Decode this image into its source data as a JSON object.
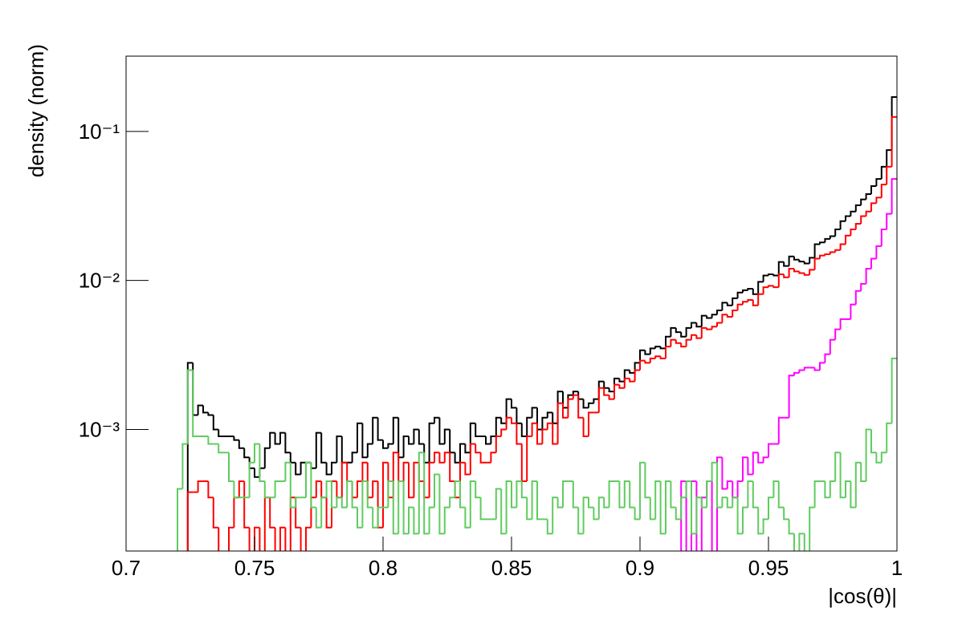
{
  "chart_data": {
    "type": "histogram",
    "x_label": "|cos(θ)|",
    "y_label": "density (norm)",
    "ylog": true,
    "xlim": [
      0.7,
      1
    ],
    "ylim": [
      0.000153,
      0.32
    ],
    "xticks": [
      0.7,
      0.75,
      0.8,
      0.85,
      0.9,
      0.95,
      1
    ],
    "yticks": [
      {
        "value": 0.001,
        "label": "10⁻³"
      },
      {
        "value": 0.01,
        "label": "10⁻²"
      },
      {
        "value": 0.1,
        "label": "10⁻¹"
      }
    ],
    "bins": [
      0.7,
      0.702,
      0.704,
      0.706,
      0.708,
      0.71,
      0.712,
      0.714,
      0.716,
      0.718,
      0.72,
      0.722,
      0.724,
      0.726,
      0.728,
      0.73,
      0.732,
      0.734,
      0.736,
      0.738,
      0.74,
      0.742,
      0.744,
      0.746,
      0.748,
      0.75,
      0.752,
      0.754,
      0.756,
      0.758,
      0.76,
      0.762,
      0.764,
      0.766,
      0.768,
      0.77,
      0.772,
      0.774,
      0.776,
      0.778,
      0.78,
      0.782,
      0.784,
      0.786,
      0.788,
      0.79,
      0.792,
      0.794,
      0.796,
      0.798,
      0.8,
      0.802,
      0.804,
      0.806,
      0.808,
      0.81,
      0.812,
      0.814,
      0.816,
      0.818,
      0.82,
      0.822,
      0.824,
      0.826,
      0.828,
      0.83,
      0.832,
      0.834,
      0.836,
      0.838,
      0.84,
      0.842,
      0.844,
      0.846,
      0.848,
      0.85,
      0.852,
      0.854,
      0.856,
      0.858,
      0.86,
      0.862,
      0.864,
      0.866,
      0.868,
      0.87,
      0.872,
      0.874,
      0.876,
      0.878,
      0.88,
      0.882,
      0.884,
      0.886,
      0.888,
      0.89,
      0.892,
      0.894,
      0.896,
      0.898,
      0.9,
      0.902,
      0.904,
      0.906,
      0.908,
      0.91,
      0.912,
      0.914,
      0.916,
      0.918,
      0.92,
      0.922,
      0.924,
      0.926,
      0.928,
      0.93,
      0.932,
      0.934,
      0.936,
      0.938,
      0.94,
      0.942,
      0.944,
      0.946,
      0.948,
      0.95,
      0.952,
      0.954,
      0.956,
      0.958,
      0.96,
      0.962,
      0.964,
      0.966,
      0.968,
      0.97,
      0.972,
      0.974,
      0.976,
      0.978,
      0.98,
      0.982,
      0.984,
      0.986,
      0.988,
      0.99,
      0.992,
      0.994,
      0.996,
      0.998,
      1
    ],
    "series": [
      {
        "color": "#000000",
        "values": [
          0,
          0,
          0,
          0,
          0,
          0,
          0,
          0,
          0,
          0,
          0,
          0,
          0.0028,
          0.00125,
          0.00145,
          0.0013,
          0.00125,
          0.001,
          0.0009,
          0.0009,
          0.0009,
          0.00085,
          0.00075,
          0.00065,
          0.00055,
          0.00048,
          0.00055,
          0.00075,
          0.00095,
          0.0008,
          0.00095,
          0.0007,
          0.0006,
          0.0005,
          0.0006,
          0.0006,
          0.00055,
          0.00095,
          0.0006,
          0.0005,
          0.0006,
          0.0009,
          0.0006,
          0.0006,
          0.0007,
          0.0011,
          0.00065,
          0.0008,
          0.0012,
          0.00085,
          0.00075,
          0.0008,
          0.0012,
          0.00065,
          0.0009,
          0.0008,
          0.001,
          0.0008,
          0.0006,
          0.0011,
          0.0012,
          0.0008,
          0.001,
          0.0007,
          0.0006,
          0.0008,
          0.0007,
          0.0011,
          0.0009,
          0.0009,
          0.0008,
          0.0009,
          0.0012,
          0.0011,
          0.0016,
          0.0014,
          0.0011,
          0.0009,
          0.0012,
          0.0014,
          0.001,
          0.0012,
          0.0013,
          0.0011,
          0.0018,
          0.0014,
          0.0017,
          0.0018,
          0.0016,
          0.0014,
          0.0015,
          0.0016,
          0.0021,
          0.0019,
          0.0018,
          0.0022,
          0.0021,
          0.0025,
          0.0024,
          0.0028,
          0.0034,
          0.0032,
          0.0035,
          0.0036,
          0.0035,
          0.0042,
          0.0048,
          0.0045,
          0.0042,
          0.0048,
          0.0052,
          0.0049,
          0.0058,
          0.0056,
          0.0059,
          0.0063,
          0.0071,
          0.0068,
          0.0076,
          0.0083,
          0.0086,
          0.0088,
          0.0081,
          0.0098,
          0.0108,
          0.011,
          0.0108,
          0.0133,
          0.0125,
          0.0145,
          0.0138,
          0.0134,
          0.013,
          0.0142,
          0.0175,
          0.018,
          0.019,
          0.0198,
          0.022,
          0.025,
          0.027,
          0.029,
          0.032,
          0.035,
          0.038,
          0.043,
          0.048,
          0.058,
          0.075,
          0.17
        ]
      },
      {
        "color": "#ff0000",
        "values": [
          0,
          0,
          0,
          0,
          0,
          0,
          0,
          0,
          0,
          0,
          0,
          0,
          0.00038,
          0.00038,
          0.00045,
          0.00045,
          0.00035,
          0.00022,
          0,
          0,
          0.00022,
          0.00035,
          0.00045,
          0.00022,
          0,
          0.00022,
          0,
          0.00035,
          0.00022,
          0,
          0.00022,
          0,
          0.00035,
          0.00022,
          0,
          0.00022,
          0.00035,
          0.00045,
          0.00035,
          0.00022,
          0.00045,
          0.00035,
          0.0006,
          0.00045,
          0.00035,
          0.00045,
          0.0006,
          0.00035,
          0.00045,
          0.00022,
          0.0006,
          0.00035,
          0.0007,
          0.00045,
          0.0006,
          0.00035,
          0.0006,
          0.00045,
          0.00035,
          0.0006,
          0.0007,
          0.0006,
          0.0007,
          0.00045,
          0.00035,
          0.0006,
          0.0005,
          0.0008,
          0.0007,
          0.0006,
          0.0006,
          0.0007,
          0.0009,
          0.001,
          0.0012,
          0.0011,
          0.0008,
          0.00045,
          0.0009,
          0.0011,
          0.0008,
          0.001,
          0.0011,
          0.0008,
          0.0015,
          0.0012,
          0.0016,
          0.0017,
          0.0012,
          0.0009,
          0.0013,
          0.0013,
          0.0019,
          0.0017,
          0.0016,
          0.002,
          0.0019,
          0.0022,
          0.0021,
          0.0025,
          0.0029,
          0.0028,
          0.003,
          0.0031,
          0.003,
          0.0036,
          0.004,
          0.0038,
          0.0036,
          0.004,
          0.0043,
          0.0041,
          0.0048,
          0.0047,
          0.0049,
          0.0052,
          0.0059,
          0.0057,
          0.0063,
          0.0069,
          0.0072,
          0.0074,
          0.0068,
          0.0081,
          0.009,
          0.0092,
          0.009,
          0.011,
          0.0105,
          0.012,
          0.0115,
          0.0112,
          0.0109,
          0.0118,
          0.014,
          0.0147,
          0.015,
          0.0155,
          0.016,
          0.0175,
          0.02,
          0.022,
          0.024,
          0.027,
          0.029,
          0.033,
          0.036,
          0.044,
          0.058,
          0.125
        ]
      },
      {
        "color": "#ff00ff",
        "values": [
          0,
          0,
          0,
          0,
          0,
          0,
          0,
          0,
          0,
          0,
          0,
          0,
          0,
          0,
          0,
          0,
          0,
          0,
          0,
          0,
          0,
          0,
          0,
          0,
          0,
          0,
          0,
          0,
          0,
          0,
          0,
          0,
          0,
          0,
          0,
          0,
          0,
          0,
          0,
          0,
          0,
          0,
          0,
          0,
          0,
          0,
          0,
          0,
          0,
          0,
          0,
          0,
          0,
          0,
          0,
          0,
          0,
          0,
          0,
          0,
          0,
          0,
          0,
          0,
          0,
          0,
          0,
          0,
          0,
          0,
          0,
          0,
          0,
          0,
          0,
          0,
          0,
          0,
          0,
          0,
          0,
          0,
          0,
          0,
          0,
          0,
          0,
          0,
          0,
          0,
          0,
          0,
          0,
          0,
          0,
          0,
          0,
          0,
          0,
          0,
          0,
          0,
          0,
          0,
          0,
          0,
          0,
          0,
          0.00045,
          0,
          0.00045,
          0,
          0.00035,
          0.00045,
          0,
          0.00065,
          0.0004,
          0.00045,
          0.00035,
          0.00045,
          0.00065,
          0.0005,
          0.0007,
          0.0006,
          0.00065,
          0.0008,
          0.0008,
          0.0012,
          0.0012,
          0.0023,
          0.0024,
          0.0025,
          0.0026,
          0.0026,
          0.0025,
          0.0028,
          0.0032,
          0.004,
          0.0047,
          0.0055,
          0.0055,
          0.0069,
          0.0085,
          0.0095,
          0.012,
          0.014,
          0.017,
          0.022,
          0.028,
          0.048
        ]
      },
      {
        "color": "#5fcc5f",
        "values": [
          0,
          0,
          0,
          0,
          0,
          0,
          0,
          0,
          0,
          0,
          0.0004,
          0.0008,
          0.0025,
          0.0009,
          0.0009,
          0.0009,
          0.0008,
          0.0008,
          0.0007,
          0.0007,
          0.00045,
          0.00035,
          0.00035,
          0.00035,
          0.0006,
          0.0008,
          0.00045,
          0.00035,
          0.00035,
          0.00045,
          0.00045,
          0.0006,
          0.0003,
          0.00035,
          0.00035,
          0.0006,
          0.0003,
          0.00022,
          0.00035,
          0.00045,
          0.0003,
          0.00035,
          0.0003,
          0.00045,
          0.0003,
          0.00022,
          0.00045,
          0.0003,
          0.00022,
          0.0003,
          0.0003,
          0.00045,
          0.0002,
          0.00045,
          0.0002,
          0.0003,
          0.0002,
          0.0007,
          0.0002,
          0.0003,
          0.0005,
          0.0002,
          0.0003,
          0.00035,
          0.00045,
          0.0003,
          0.00022,
          0.00045,
          0.00035,
          0.00025,
          0.00025,
          0.00025,
          0.0004,
          0.0002,
          0.00045,
          0.0003,
          0.00045,
          0.00035,
          0.00025,
          0.00045,
          0.00025,
          0.00025,
          0.0002,
          0.00035,
          0.0003,
          0.00045,
          0.00045,
          0.0003,
          0.0002,
          0.00035,
          0.0003,
          0.00025,
          0.00035,
          0.0003,
          0.00045,
          0.00045,
          0.0003,
          0.00045,
          0.0003,
          0.00025,
          0.0006,
          0.00035,
          0.00025,
          0.00045,
          0.0002,
          0.00045,
          0.0003,
          0.00025,
          0.00035,
          0.00045,
          0.0002,
          0.00035,
          0.0003,
          0.00045,
          0.0006,
          0.0003,
          0.00035,
          0.0003,
          0.00035,
          0.0002,
          0.0003,
          0.00045,
          0.0003,
          0.0002,
          0.00025,
          0.00035,
          0.00045,
          0.0003,
          0.00025,
          0.0002,
          0,
          0.0002,
          0,
          0.0003,
          0.00045,
          0.00045,
          0.00035,
          0.00045,
          0.0007,
          0.00035,
          0.00045,
          0.0003,
          0.0006,
          0.00045,
          0.001,
          0.0007,
          0.0006,
          0.0007,
          0.0011,
          0.003
        ]
      }
    ]
  }
}
